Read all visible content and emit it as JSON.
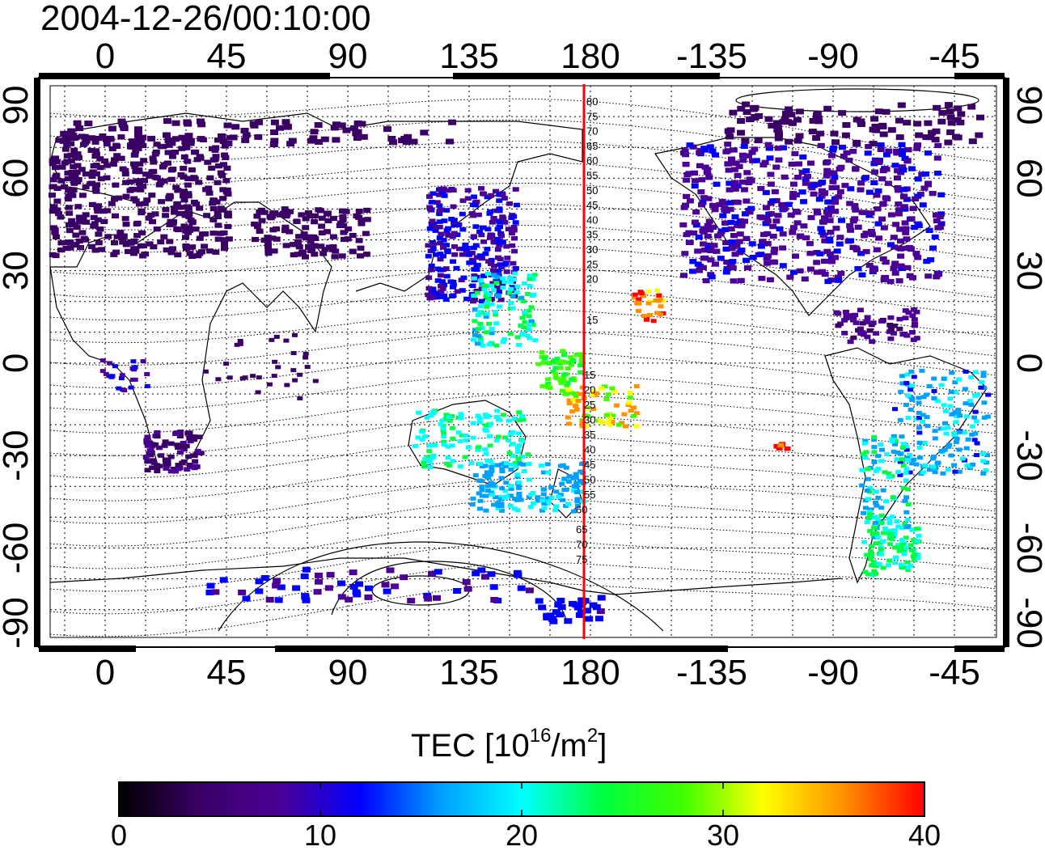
{
  "timestamp": "2004-12-26/00:10:00",
  "map": {
    "top_lon_labels": [
      "0",
      "45",
      "90",
      "135",
      "180",
      "-135",
      "-90",
      "-45"
    ],
    "bottom_lon_labels": [
      "0",
      "45",
      "90",
      "135",
      "180",
      "-135",
      "-90",
      "-45"
    ],
    "lat_labels": [
      "90",
      "60",
      "30",
      "0",
      "-30",
      "-60",
      "-90"
    ],
    "meridian_line_lon": 180,
    "meridian_line_color": "#ff0000",
    "meridian_upper_labels": [
      "80",
      "75",
      "70",
      "65",
      "60",
      "55",
      "50",
      "45",
      "40",
      "35",
      "30",
      "25",
      "20",
      "15"
    ],
    "meridian_lower_labels": [
      "15",
      "20",
      "25",
      "30",
      "35",
      "40",
      "45",
      "50",
      "55",
      "60",
      "65",
      "70",
      "75"
    ]
  },
  "colorbar": {
    "title_text": "TEC  [10",
    "title_sup1": "16",
    "title_mid": "/m",
    "title_sup2": "2",
    "title_end": "]",
    "ticks": [
      "0",
      "10",
      "20",
      "30",
      "40"
    ],
    "min": 0,
    "max": 40,
    "stops": [
      "#000000",
      "#3a0066",
      "#4b0096",
      "#0000ff",
      "#00a0ff",
      "#00ffff",
      "#00ff40",
      "#40ff00",
      "#ffff00",
      "#ff9000",
      "#ff0000"
    ]
  }
}
